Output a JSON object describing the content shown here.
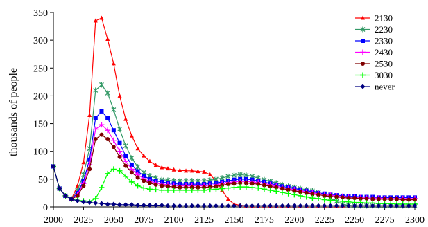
{
  "chart_data": {
    "type": "line",
    "title": "",
    "xlabel": "",
    "ylabel": "thousands of people",
    "xlim": [
      2000,
      2300
    ],
    "ylim": [
      0,
      350
    ],
    "x_ticks": [
      2000,
      2025,
      2050,
      2075,
      2100,
      2125,
      2150,
      2175,
      2200,
      2225,
      2250,
      2275,
      2300
    ],
    "y_ticks": [
      0,
      50,
      100,
      150,
      200,
      250,
      300,
      350
    ],
    "grid": false,
    "legend_position": "top-right",
    "x": [
      2000,
      2005,
      2010,
      2015,
      2020,
      2025,
      2030,
      2035,
      2040,
      2045,
      2050,
      2055,
      2060,
      2065,
      2070,
      2075,
      2080,
      2085,
      2090,
      2095,
      2100,
      2105,
      2110,
      2115,
      2120,
      2125,
      2130,
      2135,
      2140,
      2145,
      2150,
      2155,
      2160,
      2165,
      2170,
      2175,
      2180,
      2185,
      2190,
      2195,
      2200,
      2205,
      2210,
      2215,
      2220,
      2225,
      2230,
      2235,
      2240,
      2245,
      2250,
      2255,
      2260,
      2265,
      2270,
      2275,
      2280,
      2285,
      2290,
      2295,
      2300
    ],
    "series": [
      {
        "name": "2130",
        "color": "#ff0000",
        "marker": "triangle",
        "values": [
          73,
          33,
          20,
          14,
          38,
          80,
          165,
          335,
          340,
          302,
          258,
          200,
          158,
          128,
          105,
          92,
          82,
          75,
          71,
          69,
          67,
          66,
          65,
          65,
          64,
          63,
          58,
          47,
          30,
          14,
          5,
          3,
          2,
          2,
          2,
          2,
          2,
          2,
          2,
          2,
          2,
          2,
          2,
          2,
          2,
          2,
          2,
          2,
          2,
          2,
          2,
          2,
          2,
          2,
          2,
          2,
          2,
          2,
          2,
          2,
          2
        ]
      },
      {
        "name": "2230",
        "color": "#339966",
        "marker": "asterisk",
        "values": [
          73,
          33,
          20,
          14,
          30,
          58,
          105,
          210,
          220,
          205,
          175,
          140,
          110,
          88,
          72,
          62,
          56,
          52,
          49,
          48,
          47,
          47,
          47,
          47,
          47,
          47,
          48,
          50,
          52,
          55,
          57,
          58,
          57,
          55,
          52,
          49,
          46,
          43,
          40,
          37,
          35,
          33,
          31,
          29,
          26,
          22,
          16,
          10,
          5,
          3,
          2,
          2,
          2,
          2,
          2,
          2,
          2,
          2,
          2,
          2,
          2
        ]
      },
      {
        "name": "2330",
        "color": "#0000ff",
        "marker": "square",
        "values": [
          73,
          33,
          20,
          14,
          25,
          47,
          85,
          160,
          172,
          160,
          138,
          115,
          92,
          76,
          64,
          56,
          50,
          47,
          45,
          43,
          42,
          41,
          41,
          41,
          41,
          41,
          42,
          43,
          45,
          47,
          49,
          50,
          50,
          49,
          47,
          45,
          42,
          40,
          37,
          35,
          33,
          31,
          29,
          27,
          25,
          24,
          22,
          21,
          20,
          19,
          19,
          18,
          18,
          18,
          17,
          17,
          17,
          17,
          17,
          17,
          17
        ]
      },
      {
        "name": "2430",
        "color": "#ff00ff",
        "marker": "plus",
        "values": [
          73,
          33,
          20,
          14,
          22,
          42,
          76,
          140,
          148,
          138,
          120,
          100,
          82,
          68,
          58,
          51,
          46,
          43,
          41,
          40,
          39,
          38,
          38,
          38,
          38,
          38,
          39,
          40,
          42,
          44,
          45,
          46,
          46,
          45,
          44,
          42,
          40,
          37,
          35,
          33,
          31,
          29,
          27,
          25,
          24,
          22,
          21,
          20,
          19,
          18,
          17,
          17,
          16,
          16,
          16,
          15,
          15,
          15,
          15,
          15,
          15
        ]
      },
      {
        "name": "2530",
        "color": "#800000",
        "marker": "circle",
        "values": [
          73,
          33,
          20,
          14,
          20,
          38,
          68,
          122,
          130,
          122,
          108,
          90,
          74,
          62,
          53,
          47,
          43,
          40,
          38,
          37,
          36,
          35,
          35,
          35,
          35,
          35,
          36,
          37,
          39,
          41,
          42,
          43,
          43,
          42,
          41,
          39,
          37,
          35,
          33,
          31,
          29,
          27,
          25,
          23,
          22,
          20,
          19,
          18,
          17,
          16,
          16,
          15,
          15,
          14,
          14,
          14,
          14,
          14,
          13,
          13,
          13
        ]
      },
      {
        "name": "3030",
        "color": "#00ff00",
        "marker": "plus",
        "values": [
          73,
          33,
          20,
          14,
          12,
          11,
          10,
          15,
          35,
          60,
          68,
          65,
          55,
          45,
          38,
          34,
          32,
          31,
          30,
          30,
          30,
          30,
          30,
          30,
          30,
          30,
          31,
          32,
          33,
          34,
          35,
          36,
          36,
          35,
          34,
          32,
          30,
          28,
          26,
          24,
          22,
          20,
          18,
          16,
          15,
          13,
          12,
          11,
          10,
          9,
          8,
          8,
          7,
          7,
          6,
          6,
          6,
          5,
          5,
          5,
          5
        ]
      },
      {
        "name": "never",
        "color": "#000080",
        "marker": "diamond",
        "values": [
          73,
          33,
          20,
          14,
          11,
          9,
          8,
          7,
          6,
          5,
          5,
          4,
          4,
          4,
          3,
          3,
          3,
          3,
          3,
          2,
          2,
          2,
          2,
          2,
          2,
          2,
          2,
          2,
          2,
          2,
          2,
          2,
          2,
          2,
          2,
          2,
          2,
          2,
          2,
          2,
          2,
          2,
          2,
          2,
          2,
          2,
          2,
          2,
          2,
          2,
          2,
          2,
          2,
          2,
          2,
          2,
          2,
          2,
          2,
          2,
          2
        ]
      }
    ]
  }
}
